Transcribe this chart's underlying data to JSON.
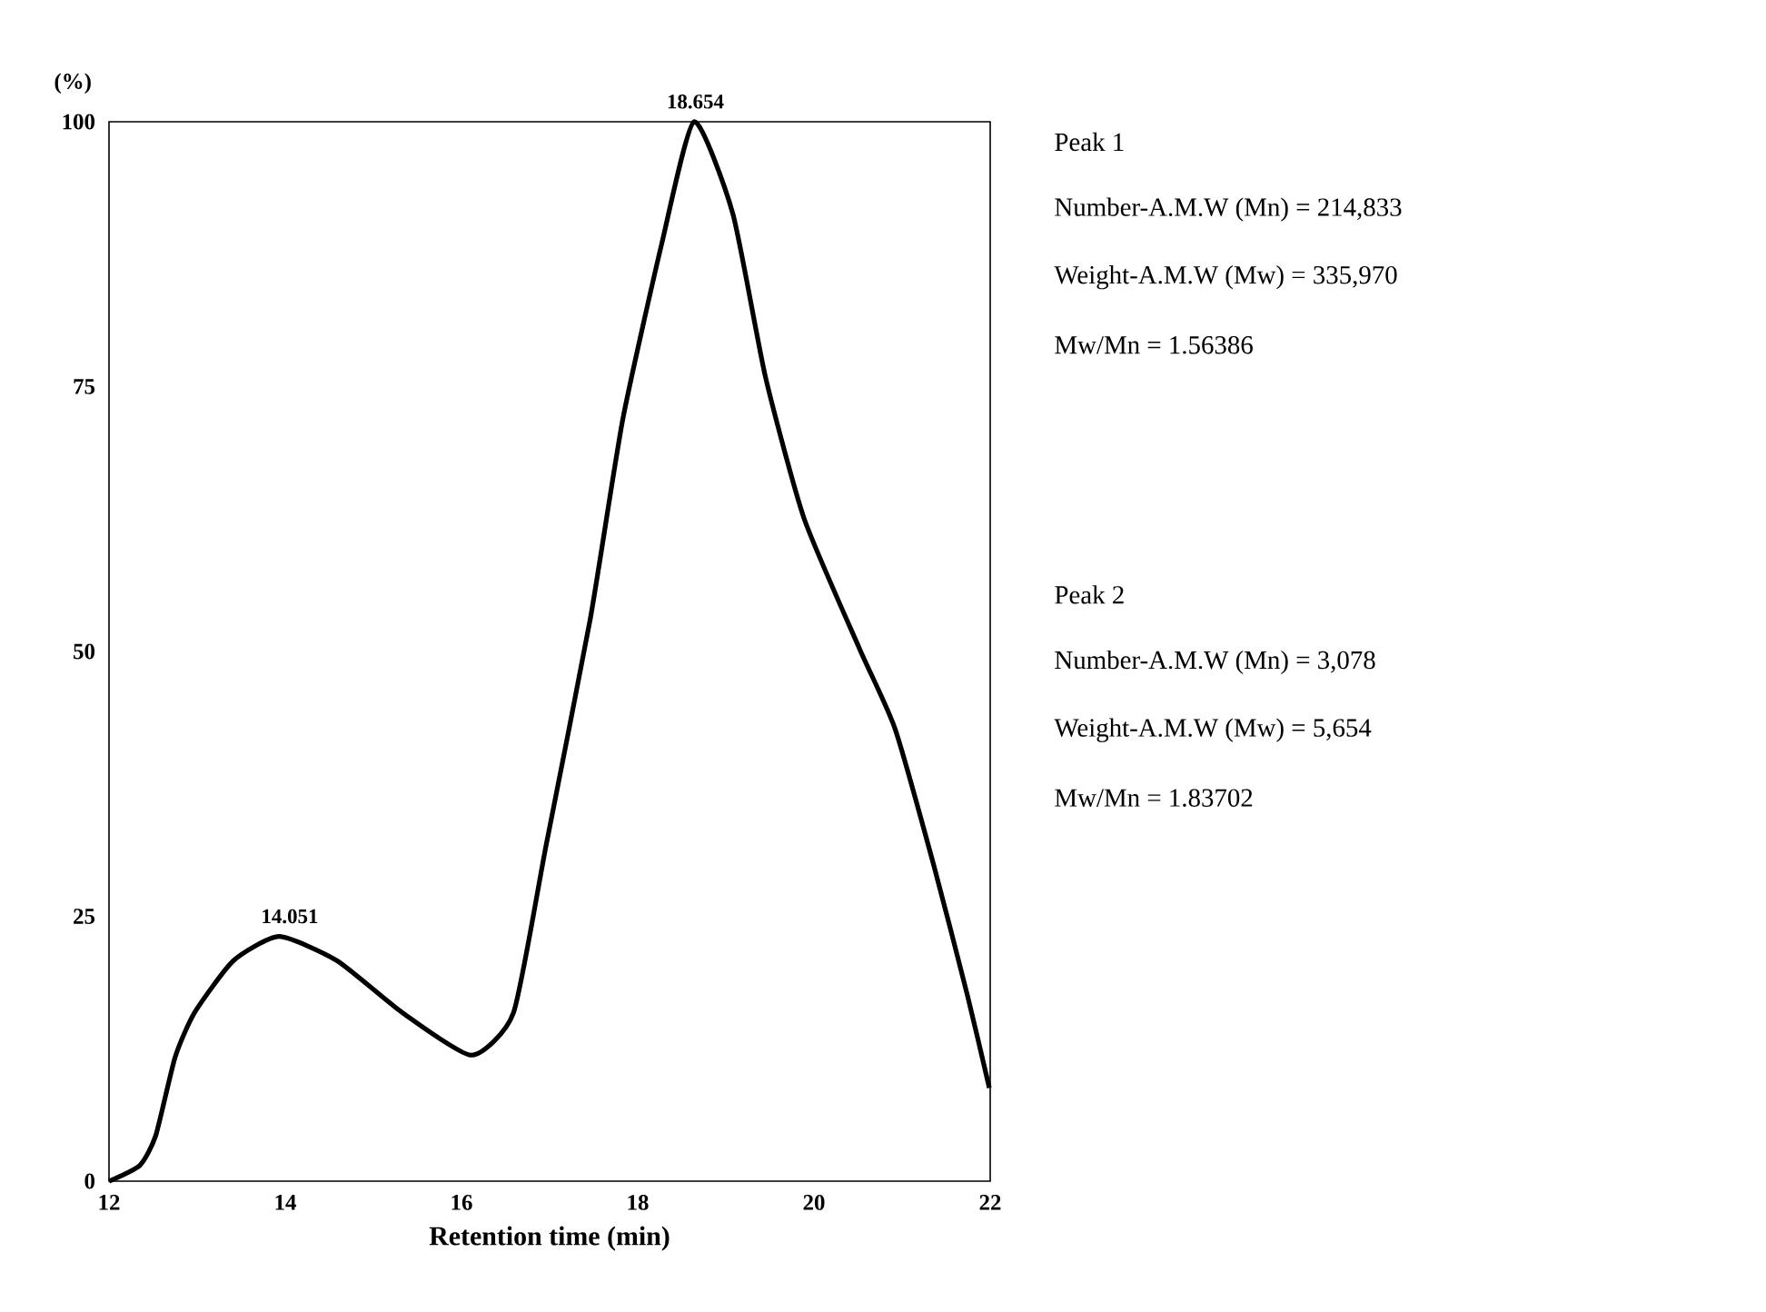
{
  "chart_data": {
    "type": "line",
    "xlabel": "Retention time (min)",
    "ylabel": "(%)",
    "xlim": [
      12,
      22
    ],
    "xticks": [
      12,
      14,
      16,
      18,
      20,
      22
    ],
    "ylim": [
      0,
      100
    ],
    "yticks": [
      0,
      25,
      50,
      75,
      100
    ],
    "marker": "none",
    "line_style": "solid",
    "series": [
      {
        "color": "#000000",
        "x": [
          12,
          12.35,
          12.53,
          12.75,
          12.97,
          13.41,
          13.93,
          14.59,
          15.33,
          16.11,
          16.59,
          16.96,
          17.46,
          17.83,
          18.27,
          18.64,
          19.08,
          19.45,
          19.89,
          20.52,
          20.92,
          21.36,
          21.74,
          21.99
        ],
        "values": [
          0,
          1.5,
          4.3,
          11.7,
          15.9,
          20.8,
          23.1,
          20.8,
          15.9,
          11.9,
          15.9,
          31.7,
          53,
          71.9,
          88.4,
          100,
          91.3,
          75.9,
          62.5,
          50.2,
          42.7,
          29.8,
          17.6,
          8.8
        ]
      }
    ],
    "annotations": [
      {
        "text": "18.654",
        "x": 18.654,
        "y": 100
      },
      {
        "text": "14.051",
        "x": 14.051,
        "y": 23.1
      },
      "Peak 1",
      "Number-A.M.W (Mn) = 214,833",
      "Weight-A.M.W (Mw) = 335,970",
      "Mw/Mn = 1.56386",
      "Peak 2",
      "Number-A.M.W (Mn) = 3,078",
      "Weight-A.M.W (Mw) = 5,654",
      "Mw/Mn = 1.83702"
    ]
  }
}
